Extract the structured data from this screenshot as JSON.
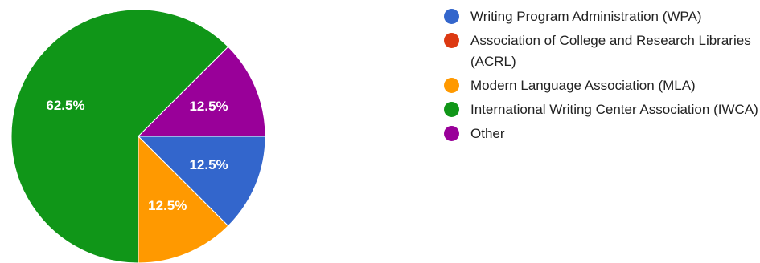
{
  "chart_data": {
    "type": "pie",
    "categories": [
      "Writing Program Administration (WPA)",
      "Association of College and Research Libraries (ACRL)",
      "Modern Language Association (MLA)",
      "International Writing Center Association (IWCA)",
      "Other"
    ],
    "values": [
      12.5,
      0,
      12.5,
      62.5,
      12.5
    ],
    "labels": [
      "12.5%",
      "",
      "12.5%",
      "62.5%",
      "12.5%"
    ],
    "colors": [
      "#3366cc",
      "#dc3912",
      "#ff9900",
      "#109618",
      "#990099"
    ],
    "legend_position": "right",
    "start_angle_deg": 90,
    "direction": "clockwise"
  }
}
